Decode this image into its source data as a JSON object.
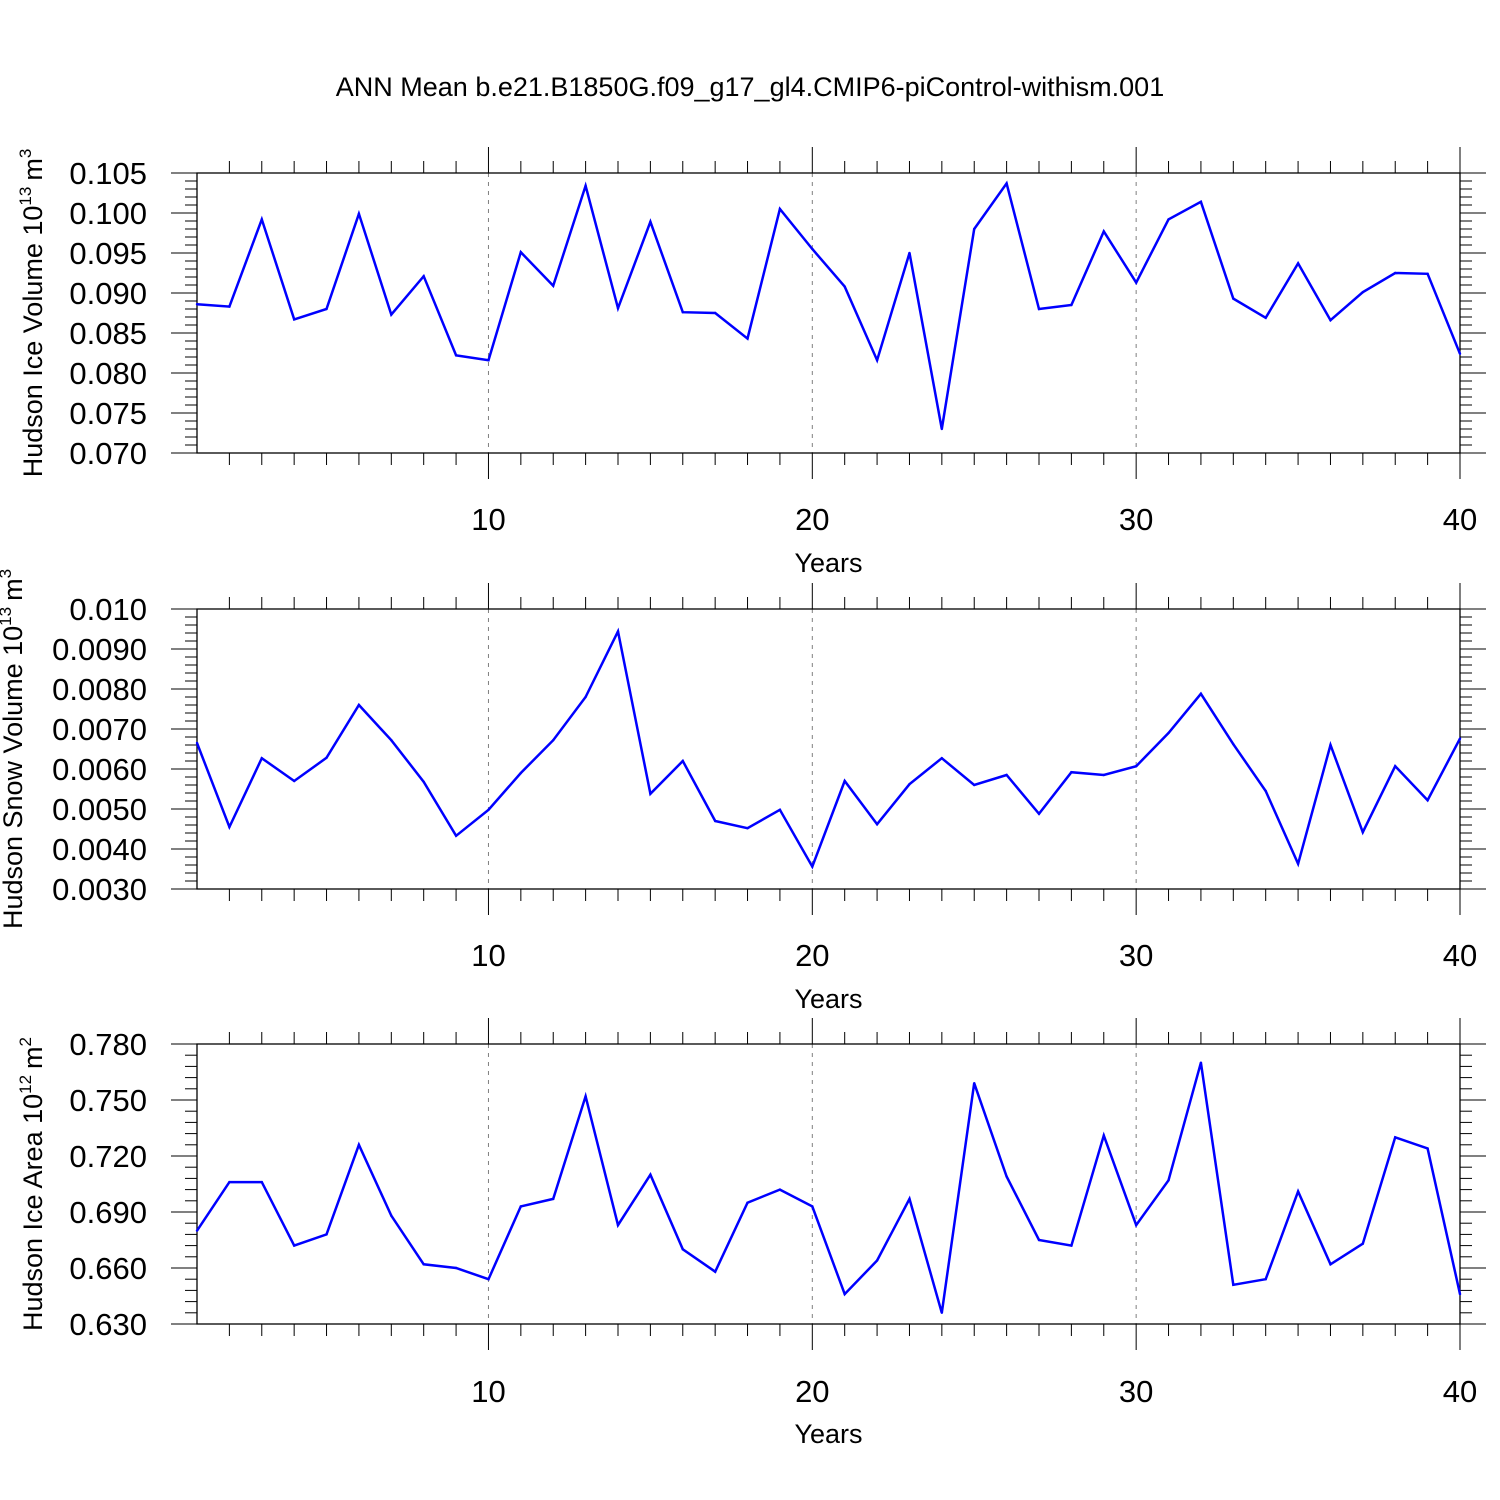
{
  "title": "ANN Mean b.e21.B1850G.f09_g17_gl4.CMIP6-piControl-withism.001",
  "colors": {
    "line": "#0000ff",
    "axis": "#000000",
    "grid": "#808080"
  },
  "chart_data": [
    {
      "type": "line",
      "xlabel": "Years",
      "ylabel": "Hudson Ice Volume",
      "yunit_base": "10",
      "yunit_exp": "13",
      "yunit_suffix": "m",
      "yunit_suffix_exp": "3",
      "xlim": [
        1,
        40
      ],
      "ylim": [
        0.07,
        0.105
      ],
      "xticks": [
        10,
        20,
        30,
        40
      ],
      "yticks": [
        0.07,
        0.075,
        0.08,
        0.085,
        0.09,
        0.095,
        0.1,
        0.105
      ],
      "ytick_labels": [
        "0.070",
        "0.075",
        "0.080",
        "0.085",
        "0.090",
        "0.095",
        "0.100",
        "0.105"
      ],
      "grid": "dashed vertical at major x ticks",
      "x": [
        1,
        2,
        3,
        4,
        5,
        6,
        7,
        8,
        9,
        10,
        11,
        12,
        13,
        14,
        15,
        16,
        17,
        18,
        19,
        20,
        21,
        22,
        23,
        24,
        25,
        26,
        27,
        28,
        29,
        30,
        31,
        32,
        33,
        34,
        35,
        36,
        37,
        38,
        39,
        40
      ],
      "series": [
        {
          "values": [
            0.0886,
            0.0883,
            0.0992,
            0.0867,
            0.088,
            0.0999,
            0.0873,
            0.0921,
            0.0822,
            0.0816,
            0.0951,
            0.0909,
            0.1034,
            0.0881,
            0.0989,
            0.0876,
            0.0875,
            0.0843,
            0.1005,
            0.0955,
            0.0908,
            0.0816,
            0.095,
            0.073,
            0.098,
            0.1037,
            0.088,
            0.0885,
            0.0977,
            0.0913,
            0.0992,
            0.1014,
            0.0893,
            0.0869,
            0.0937,
            0.0866,
            0.0901,
            0.0925,
            0.0924,
            0.0824
          ]
        }
      ]
    },
    {
      "type": "line",
      "xlabel": "Years",
      "ylabel": "Hudson Snow Volume",
      "yunit_base": "10",
      "yunit_exp": "13",
      "yunit_suffix": "m",
      "yunit_suffix_exp": "3",
      "xlim": [
        1,
        40
      ],
      "ylim": [
        0.003,
        0.01
      ],
      "xticks": [
        10,
        20,
        30,
        40
      ],
      "yticks": [
        0.003,
        0.004,
        0.005,
        0.006,
        0.007,
        0.008,
        0.009,
        0.01
      ],
      "ytick_labels": [
        "0.0030",
        "0.0040",
        "0.0050",
        "0.0060",
        "0.0070",
        "0.0080",
        "0.0090",
        "0.010"
      ],
      "grid": "dashed vertical at major x ticks",
      "x": [
        1,
        2,
        3,
        4,
        5,
        6,
        7,
        8,
        9,
        10,
        11,
        12,
        13,
        14,
        15,
        16,
        17,
        18,
        19,
        20,
        21,
        22,
        23,
        24,
        25,
        26,
        27,
        28,
        29,
        30,
        31,
        32,
        33,
        34,
        35,
        36,
        37,
        38,
        39,
        40
      ],
      "series": [
        {
          "values": [
            0.00665,
            0.00455,
            0.00627,
            0.0057,
            0.00628,
            0.0076,
            0.00672,
            0.00568,
            0.00433,
            0.00498,
            0.0059,
            0.00672,
            0.0078,
            0.00944,
            0.00538,
            0.0062,
            0.0047,
            0.00452,
            0.00498,
            0.00356,
            0.0057,
            0.00462,
            0.00562,
            0.00627,
            0.0056,
            0.00585,
            0.00488,
            0.00592,
            0.00585,
            0.00607,
            0.0069,
            0.00788,
            0.00662,
            0.00545,
            0.00363,
            0.0066,
            0.00442,
            0.00607,
            0.00522,
            0.00676
          ]
        }
      ]
    },
    {
      "type": "line",
      "xlabel": "Years",
      "ylabel": "Hudson Ice Area",
      "yunit_base": "10",
      "yunit_exp": "12",
      "yunit_suffix": "m",
      "yunit_suffix_exp": "2",
      "xlim": [
        1,
        40
      ],
      "ylim": [
        0.63,
        0.78
      ],
      "xticks": [
        10,
        20,
        30,
        40
      ],
      "yticks": [
        0.63,
        0.66,
        0.69,
        0.72,
        0.75,
        0.78
      ],
      "ytick_labels": [
        "0.630",
        "0.660",
        "0.690",
        "0.720",
        "0.750",
        "0.780"
      ],
      "grid": "dashed vertical at major x ticks",
      "x": [
        1,
        2,
        3,
        4,
        5,
        6,
        7,
        8,
        9,
        10,
        11,
        12,
        13,
        14,
        15,
        16,
        17,
        18,
        19,
        20,
        21,
        22,
        23,
        24,
        25,
        26,
        27,
        28,
        29,
        30,
        31,
        32,
        33,
        34,
        35,
        36,
        37,
        38,
        39,
        40
      ],
      "series": [
        {
          "values": [
            0.68,
            0.706,
            0.706,
            0.672,
            0.678,
            0.726,
            0.688,
            0.662,
            0.66,
            0.654,
            0.693,
            0.697,
            0.752,
            0.683,
            0.71,
            0.67,
            0.658,
            0.695,
            0.702,
            0.693,
            0.646,
            0.664,
            0.697,
            0.636,
            0.759,
            0.709,
            0.675,
            0.672,
            0.731,
            0.683,
            0.707,
            0.77,
            0.651,
            0.654,
            0.701,
            0.662,
            0.673,
            0.73,
            0.724,
            0.646
          ]
        }
      ]
    }
  ]
}
